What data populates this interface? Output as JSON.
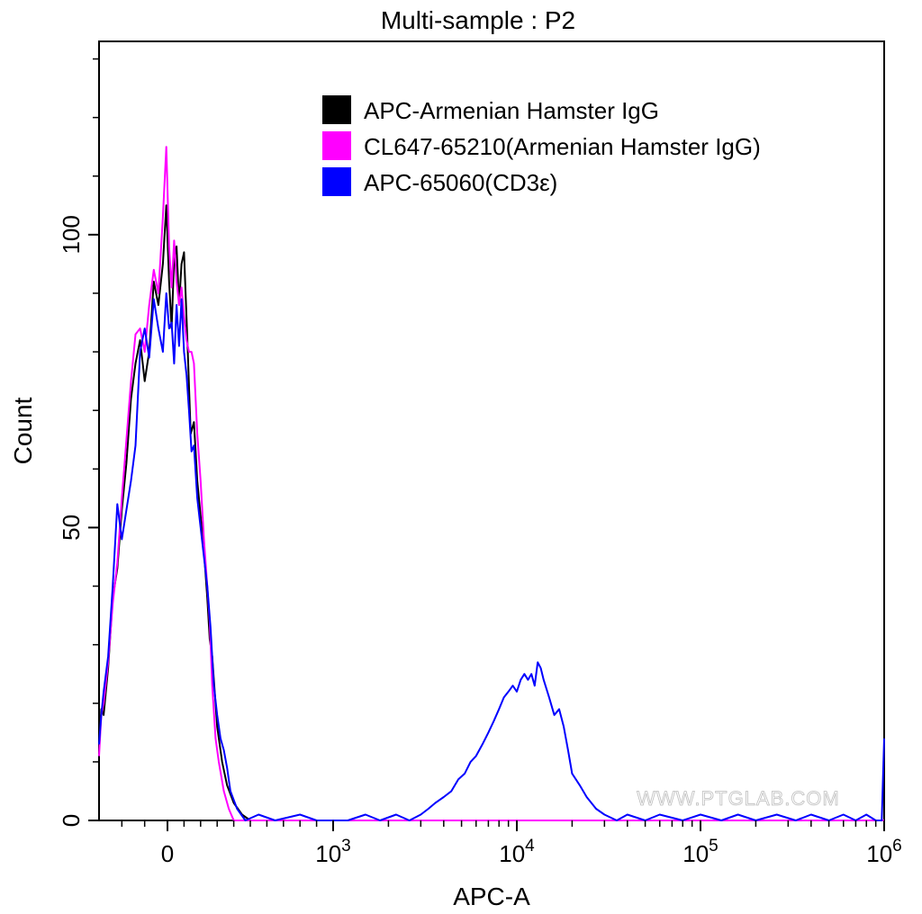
{
  "chart_data": {
    "type": "line",
    "title": "Multi-sample : P2",
    "xlabel": "APC-A",
    "ylabel": "Count",
    "xscale": "biexponential",
    "xlim": [
      -300,
      1000000
    ],
    "ylim": [
      0,
      133
    ],
    "x_ticks": [
      {
        "value": 0,
        "label": "0"
      },
      {
        "value": 1000,
        "base": "10",
        "exp": "3"
      },
      {
        "value": 10000,
        "base": "10",
        "exp": "4"
      },
      {
        "value": 100000,
        "base": "10",
        "exp": "5"
      },
      {
        "value": 1000000,
        "base": "10",
        "exp": "6"
      }
    ],
    "y_ticks": [
      {
        "value": 0,
        "label": "0"
      },
      {
        "value": 50,
        "label": "50"
      },
      {
        "value": 100,
        "label": "100"
      }
    ],
    "grid": false,
    "legend_position": "top-right",
    "watermark": "WWW.PTGLAB.COM",
    "series": [
      {
        "name": "APC-Armenian Hamster IgG",
        "color": "#000000",
        "points": [
          [
            -300,
            13
          ],
          [
            -290,
            19
          ],
          [
            -280,
            18
          ],
          [
            -260,
            26
          ],
          [
            -240,
            38
          ],
          [
            -220,
            43
          ],
          [
            -200,
            53
          ],
          [
            -180,
            61
          ],
          [
            -160,
            72
          ],
          [
            -140,
            78
          ],
          [
            -120,
            82
          ],
          [
            -100,
            75
          ],
          [
            -80,
            80
          ],
          [
            -60,
            92
          ],
          [
            -40,
            88
          ],
          [
            -20,
            95
          ],
          [
            -5,
            105
          ],
          [
            10,
            92
          ],
          [
            25,
            84
          ],
          [
            40,
            96
          ],
          [
            55,
            98
          ],
          [
            70,
            88
          ],
          [
            85,
            95
          ],
          [
            100,
            97
          ],
          [
            120,
            82
          ],
          [
            140,
            66
          ],
          [
            160,
            68
          ],
          [
            180,
            58
          ],
          [
            200,
            52
          ],
          [
            220,
            46
          ],
          [
            240,
            38
          ],
          [
            255,
            31
          ],
          [
            270,
            28
          ],
          [
            300,
            16
          ],
          [
            330,
            10
          ],
          [
            360,
            6
          ],
          [
            400,
            3
          ],
          [
            450,
            1
          ],
          [
            500,
            0
          ],
          [
            600,
            0
          ],
          [
            900,
            0
          ],
          [
            2000,
            0
          ],
          [
            5000,
            0
          ],
          [
            20000,
            0
          ],
          [
            1000000,
            0
          ]
        ]
      },
      {
        "name": "CL647-65210(Armenian Hamster IgG)",
        "color": "#ff00ff",
        "points": [
          [
            -300,
            11
          ],
          [
            -290,
            18
          ],
          [
            -280,
            20
          ],
          [
            -260,
            27
          ],
          [
            -240,
            37
          ],
          [
            -220,
            44
          ],
          [
            -200,
            55
          ],
          [
            -180,
            65
          ],
          [
            -160,
            75
          ],
          [
            -140,
            83
          ],
          [
            -120,
            84
          ],
          [
            -100,
            80
          ],
          [
            -80,
            88
          ],
          [
            -60,
            94
          ],
          [
            -40,
            90
          ],
          [
            -20,
            103
          ],
          [
            -5,
            115
          ],
          [
            10,
            98
          ],
          [
            25,
            91
          ],
          [
            40,
            99
          ],
          [
            55,
            92
          ],
          [
            70,
            88
          ],
          [
            85,
            91
          ],
          [
            100,
            86
          ],
          [
            115,
            82
          ],
          [
            130,
            80
          ],
          [
            145,
            80
          ],
          [
            160,
            78
          ],
          [
            180,
            66
          ],
          [
            200,
            58
          ],
          [
            220,
            48
          ],
          [
            240,
            40
          ],
          [
            255,
            34
          ],
          [
            270,
            23
          ],
          [
            290,
            14
          ],
          [
            310,
            10
          ],
          [
            340,
            5
          ],
          [
            370,
            2
          ],
          [
            400,
            0
          ],
          [
            500,
            0
          ],
          [
            900,
            0
          ],
          [
            2000,
            0
          ],
          [
            5000,
            0
          ],
          [
            20000,
            0
          ],
          [
            1000000,
            0
          ]
        ]
      },
      {
        "name": "APC-65060(CD3ε)",
        "color": "#0000ff",
        "points": [
          [
            -300,
            13
          ],
          [
            -290,
            18
          ],
          [
            -280,
            22
          ],
          [
            -260,
            28
          ],
          [
            -240,
            40
          ],
          [
            -220,
            54
          ],
          [
            -200,
            48
          ],
          [
            -180,
            53
          ],
          [
            -160,
            58
          ],
          [
            -140,
            64
          ],
          [
            -120,
            80
          ],
          [
            -100,
            84
          ],
          [
            -80,
            79
          ],
          [
            -60,
            89
          ],
          [
            -40,
            84
          ],
          [
            -20,
            80
          ],
          [
            -5,
            90
          ],
          [
            10,
            84
          ],
          [
            25,
            85
          ],
          [
            40,
            78
          ],
          [
            55,
            88
          ],
          [
            70,
            81
          ],
          [
            85,
            89
          ],
          [
            100,
            80
          ],
          [
            115,
            76
          ],
          [
            130,
            70
          ],
          [
            145,
            63
          ],
          [
            160,
            64
          ],
          [
            180,
            55
          ],
          [
            200,
            50
          ],
          [
            220,
            45
          ],
          [
            240,
            40
          ],
          [
            260,
            33
          ],
          [
            280,
            23
          ],
          [
            300,
            18
          ],
          [
            320,
            14
          ],
          [
            340,
            12
          ],
          [
            360,
            9
          ],
          [
            380,
            5
          ],
          [
            420,
            2
          ],
          [
            470,
            0
          ],
          [
            550,
            1
          ],
          [
            650,
            0
          ],
          [
            800,
            1
          ],
          [
            900,
            0
          ],
          [
            1200,
            0
          ],
          [
            1500,
            1
          ],
          [
            1800,
            0
          ],
          [
            2200,
            1
          ],
          [
            2600,
            0
          ],
          [
            3000,
            1
          ],
          [
            3300,
            2
          ],
          [
            3600,
            3
          ],
          [
            4000,
            4
          ],
          [
            4400,
            5
          ],
          [
            4800,
            7
          ],
          [
            5200,
            8
          ],
          [
            5600,
            10
          ],
          [
            6000,
            11
          ],
          [
            6500,
            13
          ],
          [
            7000,
            15
          ],
          [
            7500,
            17
          ],
          [
            8000,
            19
          ],
          [
            8500,
            21
          ],
          [
            9000,
            22
          ],
          [
            9500,
            23
          ],
          [
            10000,
            22
          ],
          [
            10500,
            24
          ],
          [
            11000,
            25
          ],
          [
            11500,
            24
          ],
          [
            12000,
            25
          ],
          [
            12500,
            23
          ],
          [
            13000,
            27
          ],
          [
            13500,
            26
          ],
          [
            14000,
            24
          ],
          [
            15000,
            21
          ],
          [
            16000,
            18
          ],
          [
            17000,
            19
          ],
          [
            18000,
            16
          ],
          [
            19000,
            12
          ],
          [
            20000,
            8
          ],
          [
            22000,
            6
          ],
          [
            24000,
            4
          ],
          [
            27000,
            2
          ],
          [
            30000,
            1
          ],
          [
            35000,
            0
          ],
          [
            40000,
            1
          ],
          [
            50000,
            0
          ],
          [
            60000,
            1
          ],
          [
            80000,
            0
          ],
          [
            100000,
            1
          ],
          [
            130000,
            0
          ],
          [
            160000,
            1
          ],
          [
            200000,
            0
          ],
          [
            260000,
            1
          ],
          [
            330000,
            0
          ],
          [
            400000,
            1
          ],
          [
            500000,
            0
          ],
          [
            600000,
            1
          ],
          [
            700000,
            0
          ],
          [
            800000,
            1
          ],
          [
            900000,
            0
          ],
          [
            970000,
            0
          ],
          [
            1000000,
            14
          ]
        ]
      }
    ]
  }
}
